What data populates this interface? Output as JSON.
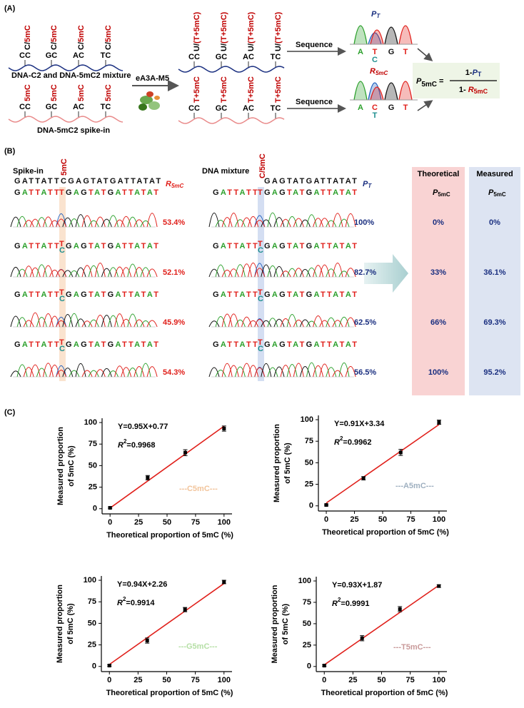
{
  "panel_a": {
    "label": "(A)",
    "sites": [
      "CC",
      "GC",
      "AC",
      "TC"
    ],
    "mix_mark_black": "C/",
    "mix_mark_red": "5mC",
    "mix_caption": "DNA-C2 and DNA-5mC2 mixture",
    "spike_mark": "5mC",
    "spike_caption": "DNA-5mC2 spike-in",
    "enzyme": "eA3A-M5",
    "conv_black": "U/",
    "conv_red": "(T+5mC)",
    "spike_conv": "T+5mC",
    "sequence": "Sequence",
    "trace_bases": [
      "A",
      "T",
      "C",
      "G",
      "T"
    ],
    "pt_symbol": "P",
    "pt_sub": "T",
    "r_symbol": "R",
    "r_sub": "5mC",
    "formula": {
      "p": "P",
      "p_sub": "5mC",
      "eq": "=",
      "num_one": "1-",
      "num_p": "P",
      "num_sub": "T",
      "den_one": "1- ",
      "den_r": "R",
      "den_sub": "5mC"
    }
  },
  "panel_b": {
    "label": "(B)",
    "spike_in": "Spike-in",
    "dna_mixture": "DNA mixture",
    "ref_seq": "GATTATTCGAGTATGATTATAT",
    "ref_seq_right": "GAGTATGATTATAT",
    "left_mark": "5mC",
    "right_mark": "C/5mC",
    "read_prefix": "GATTATT",
    "read_top": "T",
    "read_bottom": "C",
    "read_suffix": "GAGTATGATTATAT",
    "r_symbol": "R",
    "r_sub": "5mC",
    "pt_symbol": "P",
    "pt_sub": "T",
    "r_values": [
      "53.4%",
      "52.1%",
      "45.9%",
      "54.3%"
    ],
    "pt_values": [
      "100%",
      "82.7%",
      "62.5%",
      "56.5%"
    ],
    "theoretical_header": "Theoretical",
    "measured_header": "Measured",
    "p_symbol": "P",
    "p_sub": "5mC",
    "theoretical": [
      "0%",
      "33%",
      "66%",
      "100%"
    ],
    "measured": [
      "0%",
      "36.1%",
      "69.3%",
      "95.2%"
    ]
  },
  "panel_c_label": "(C)",
  "chart_data": [
    {
      "type": "scatter",
      "x": [
        0,
        33,
        66,
        100
      ],
      "series": [
        {
          "name": "---C5mC---",
          "color": "#000000",
          "values": [
            1,
            36,
            65,
            93
          ],
          "errors": [
            1,
            2.5,
            3.5,
            3
          ]
        }
      ],
      "legend_color": "#f2c49b",
      "fit": {
        "slope": 0.95,
        "intercept": 0.77,
        "color": "#e0201b"
      },
      "equation": "Y=0.95X+0.77",
      "r2": {
        "symbol": "R",
        "exp": "2",
        "value": "=0.9968"
      },
      "xlabel": "Theoretical proportion of 5mC (%)",
      "ylabel": [
        "Measured proportion",
        "of 5mC (%)"
      ],
      "xlim": [
        -7,
        107
      ],
      "ylim": [
        -6,
        105
      ],
      "xticks": [
        0,
        25,
        50,
        75,
        100
      ],
      "yticks": [
        0,
        25,
        50,
        75,
        100
      ]
    },
    {
      "type": "scatter",
      "x": [
        0,
        33,
        66,
        100
      ],
      "series": [
        {
          "name": "---A5mC---",
          "color": "#000000",
          "values": [
            1,
            32,
            62,
            97
          ],
          "errors": [
            1,
            2,
            3.5,
            2.5
          ]
        }
      ],
      "legend_color": "#9fb0c0",
      "fit": {
        "slope": 0.91,
        "intercept": 3.34,
        "color": "#e0201b"
      },
      "equation": "Y=0.91X+3.34",
      "r2": {
        "symbol": "R",
        "exp": "2",
        "value": "=0.9962"
      },
      "xlabel": "Theoretical proportion of 5mC (%)",
      "ylabel": [
        "Measured proportion",
        "of 5mC (%)"
      ],
      "xlim": [
        -7,
        107
      ],
      "ylim": [
        -6,
        105
      ],
      "xticks": [
        0,
        25,
        50,
        75,
        100
      ],
      "yticks": [
        0,
        25,
        50,
        75,
        100
      ]
    },
    {
      "type": "scatter",
      "x": [
        0,
        33,
        66,
        100
      ],
      "series": [
        {
          "name": "---G5mC---",
          "color": "#000000",
          "values": [
            1,
            30,
            66,
            98
          ],
          "errors": [
            1,
            3,
            2.5,
            2
          ]
        }
      ],
      "legend_color": "#b5dfa5",
      "fit": {
        "slope": 0.94,
        "intercept": 2.26,
        "color": "#e0201b"
      },
      "equation": "Y=0.94X+2.26",
      "r2": {
        "symbol": "R",
        "exp": "2",
        "value": "=0.9914"
      },
      "xlabel": "Theoretical proportion of 5mC (%)",
      "ylabel": [
        "Measured proportion",
        "of 5mC (%)"
      ],
      "xlim": [
        -7,
        107
      ],
      "ylim": [
        -6,
        105
      ],
      "xticks": [
        0,
        25,
        50,
        75,
        100
      ],
      "yticks": [
        0,
        25,
        50,
        75,
        100
      ]
    },
    {
      "type": "scatter",
      "x": [
        0,
        33,
        66,
        100
      ],
      "series": [
        {
          "name": "---T5mC---",
          "color": "#000000",
          "values": [
            1,
            33,
            67,
            94
          ],
          "errors": [
            1,
            3,
            3,
            1.5
          ]
        }
      ],
      "legend_color": "#c99a9a",
      "fit": {
        "slope": 0.93,
        "intercept": 1.87,
        "color": "#e0201b"
      },
      "equation": "Y=0.93X+1.87",
      "r2": {
        "symbol": "R",
        "exp": "2",
        "value": "=0.9991"
      },
      "xlabel": "Theoretical proportion of 5mC (%)",
      "ylabel": [
        "Measured proportion",
        "of 5mC (%)"
      ],
      "xlim": [
        -7,
        107
      ],
      "ylim": [
        -6,
        105
      ],
      "xticks": [
        0,
        25,
        50,
        75,
        100
      ],
      "yticks": [
        0,
        25,
        50,
        75,
        100
      ]
    }
  ]
}
